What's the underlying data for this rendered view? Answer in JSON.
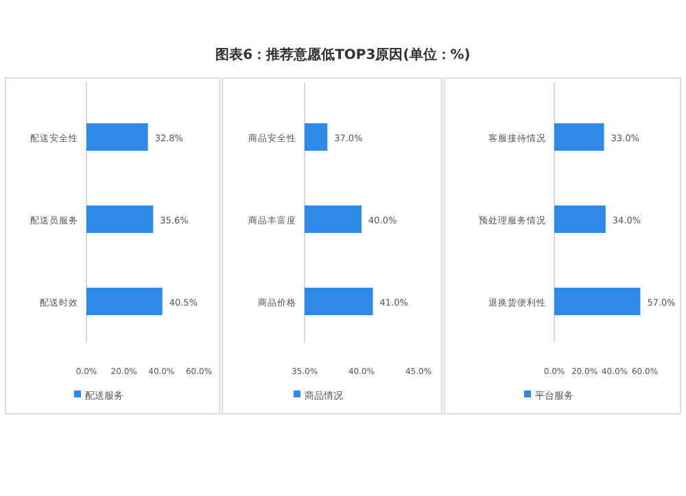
{
  "chart_data": [
    {
      "type": "other",
      "title": "图表6：推荐意愿低TOP3原因(单位：%)"
    },
    {
      "type": "bar",
      "orientation": "horizontal",
      "categories": [
        "配送安全性",
        "配送员服务",
        "配送时效"
      ],
      "series": [
        {
          "name": "配送服务",
          "color": "#2e8ae6",
          "values": [
            32.8,
            35.6,
            40.5
          ],
          "value_labels": [
            "32.8%",
            "35.6%",
            "40.5%"
          ]
        }
      ],
      "xlim": [
        0,
        60
      ],
      "xticks": [
        {
          "value": 0,
          "label": "0.0%"
        },
        {
          "value": 20,
          "label": "20.0%"
        },
        {
          "value": 40,
          "label": "40.0%"
        },
        {
          "value": 60,
          "label": "60.0%"
        }
      ],
      "legend": "bottom"
    },
    {
      "type": "bar",
      "orientation": "horizontal",
      "categories": [
        "商品安全性",
        "商品丰富度",
        "商品价格"
      ],
      "series": [
        {
          "name": "商品情况",
          "color": "#2e8ae6",
          "values": [
            37.0,
            40.0,
            41.0
          ],
          "value_labels": [
            "37.0%",
            "40.0%",
            "41.0%"
          ]
        }
      ],
      "xlim": [
        35,
        45
      ],
      "xticks": [
        {
          "value": 35,
          "label": "35.0%"
        },
        {
          "value": 40,
          "label": "40.0%"
        },
        {
          "value": 45,
          "label": "45.0%"
        }
      ],
      "legend": "bottom"
    },
    {
      "type": "bar",
      "orientation": "horizontal",
      "categories": [
        "客服接待情况",
        "预处理服务情况",
        "退换货便利性"
      ],
      "series": [
        {
          "name": "平台服务",
          "color": "#2e8ae6",
          "values": [
            33.0,
            34.0,
            57.0
          ],
          "value_labels": [
            "33.0%",
            "34.0%",
            "57.0%"
          ]
        }
      ],
      "xlim": [
        0,
        60
      ],
      "xticks": [
        {
          "value": 0,
          "label": "0.0%"
        },
        {
          "value": 20,
          "label": "20.0%"
        },
        {
          "value": 40,
          "label": "40.0%"
        },
        {
          "value": 60,
          "label": "60.0%"
        }
      ],
      "legend": "bottom"
    }
  ]
}
